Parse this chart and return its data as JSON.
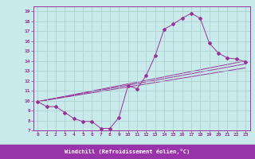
{
  "background_color": "#c8eaea",
  "line_color": "#993399",
  "grid_color": "#aacccc",
  "xlabel": "Windchill (Refroidissement éolien,°C)",
  "xlabel_bg": "#9933aa",
  "xlim": [
    -0.5,
    23.5
  ],
  "ylim": [
    7,
    19.5
  ],
  "xticks": [
    0,
    1,
    2,
    3,
    4,
    5,
    6,
    7,
    8,
    9,
    10,
    11,
    12,
    13,
    14,
    15,
    16,
    17,
    18,
    19,
    20,
    21,
    22,
    23
  ],
  "yticks": [
    7,
    8,
    9,
    10,
    11,
    12,
    13,
    14,
    15,
    16,
    17,
    18,
    19
  ],
  "line1_x": [
    0,
    1,
    2,
    3,
    4,
    5,
    6,
    7,
    8,
    9,
    10,
    11,
    12,
    13,
    14,
    15,
    16,
    17,
    18,
    19,
    20,
    21,
    22,
    23
  ],
  "line1_y": [
    9.9,
    9.4,
    9.4,
    8.8,
    8.2,
    7.9,
    7.9,
    7.2,
    7.2,
    8.3,
    11.5,
    11.2,
    12.5,
    14.5,
    17.2,
    17.7,
    18.3,
    18.8,
    18.3,
    15.8,
    14.8,
    14.3,
    14.2,
    13.9
  ],
  "line2_x": [
    0,
    23
  ],
  "line2_y": [
    9.9,
    14.0
  ],
  "line3_x": [
    0,
    23
  ],
  "line3_y": [
    9.9,
    13.7
  ],
  "line4_x": [
    0,
    23
  ],
  "line4_y": [
    9.9,
    13.3
  ]
}
